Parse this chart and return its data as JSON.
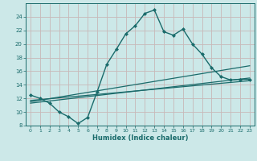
{
  "xlabel": "Humidex (Indice chaleur)",
  "bg_color": "#cce8e8",
  "line_color": "#1a6b6b",
  "grid_color": "#c8b8b8",
  "xlim": [
    -0.5,
    23.5
  ],
  "ylim": [
    8,
    26
  ],
  "yticks": [
    8,
    10,
    12,
    14,
    16,
    18,
    20,
    22,
    24
  ],
  "xticks": [
    0,
    1,
    2,
    3,
    4,
    5,
    6,
    7,
    8,
    9,
    10,
    11,
    12,
    13,
    14,
    15,
    16,
    17,
    18,
    19,
    20,
    21,
    22,
    23
  ],
  "main_x": [
    0,
    1,
    2,
    3,
    4,
    5,
    6,
    7,
    8,
    9,
    10,
    11,
    12,
    13,
    14,
    15,
    16,
    17,
    18,
    19,
    20,
    21,
    22,
    23
  ],
  "main_y": [
    12.5,
    12.0,
    11.3,
    10.0,
    9.3,
    8.3,
    9.2,
    13.0,
    17.0,
    19.2,
    21.5,
    22.7,
    24.5,
    25.0,
    21.8,
    21.3,
    22.2,
    20.0,
    18.5,
    16.5,
    15.2,
    14.7,
    14.8,
    14.8
  ],
  "trend1_x": [
    0,
    23
  ],
  "trend1_y": [
    11.5,
    16.8
  ],
  "trend2_x": [
    0,
    23
  ],
  "trend2_y": [
    11.3,
    15.0
  ],
  "trend3_x": [
    0,
    23
  ],
  "trend3_y": [
    11.7,
    14.6
  ]
}
